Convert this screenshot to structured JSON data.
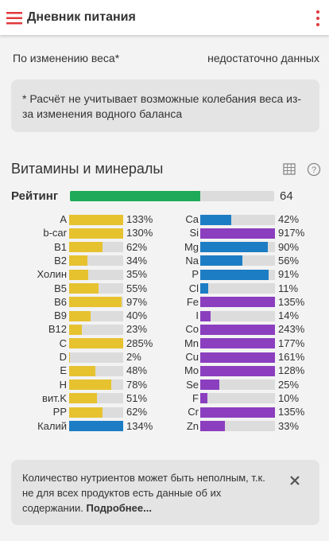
{
  "header": {
    "title": "Дневник питания"
  },
  "weight_row": {
    "label": "По изменению веса*",
    "value": "недостаточно данных"
  },
  "note": "* Расчёт не учитывает возможные колебания веса из-за изменения водного баланса",
  "section": {
    "title": "Витамины и минералы",
    "rating": {
      "label": "Рейтинг",
      "value": 64,
      "color": "#1faa59"
    }
  },
  "vitamins": [
    {
      "name": "A",
      "value": 133,
      "label": "133%",
      "color": "#e6c22f"
    },
    {
      "name": "b-car",
      "value": 130,
      "label": "130%",
      "color": "#e6c22f"
    },
    {
      "name": "B1",
      "value": 62,
      "label": "62%",
      "color": "#e6c22f"
    },
    {
      "name": "B2",
      "value": 34,
      "label": "34%",
      "color": "#e6c22f"
    },
    {
      "name": "Холин",
      "value": 35,
      "label": "35%",
      "color": "#e6c22f"
    },
    {
      "name": "B5",
      "value": 55,
      "label": "55%",
      "color": "#e6c22f"
    },
    {
      "name": "B6",
      "value": 97,
      "label": "97%",
      "color": "#e6c22f"
    },
    {
      "name": "B9",
      "value": 40,
      "label": "40%",
      "color": "#e6c22f"
    },
    {
      "name": "B12",
      "value": 23,
      "label": "23%",
      "color": "#e6c22f"
    },
    {
      "name": "C",
      "value": 285,
      "label": "285%",
      "color": "#e6c22f"
    },
    {
      "name": "D",
      "value": 2,
      "label": "2%",
      "color": "#e6c22f"
    },
    {
      "name": "E",
      "value": 48,
      "label": "48%",
      "color": "#e6c22f"
    },
    {
      "name": "H",
      "value": 78,
      "label": "78%",
      "color": "#e6c22f"
    },
    {
      "name": "вит.K",
      "value": 51,
      "label": "51%",
      "color": "#e6c22f"
    },
    {
      "name": "PP",
      "value": 62,
      "label": "62%",
      "color": "#e6c22f"
    },
    {
      "name": "Калий",
      "value": 134,
      "label": "134%",
      "color": "#1d7dc4"
    }
  ],
  "minerals": [
    {
      "name": "Ca",
      "value": 42,
      "label": "42%",
      "color": "#1d7dc4"
    },
    {
      "name": "Si",
      "value": 917,
      "label": "917%",
      "color": "#8b3fbf"
    },
    {
      "name": "Mg",
      "value": 90,
      "label": "90%",
      "color": "#1d7dc4"
    },
    {
      "name": "Na",
      "value": 56,
      "label": "56%",
      "color": "#1d7dc4"
    },
    {
      "name": "P",
      "value": 91,
      "label": "91%",
      "color": "#1d7dc4"
    },
    {
      "name": "Cl",
      "value": 11,
      "label": "11%",
      "color": "#1d7dc4"
    },
    {
      "name": "Fe",
      "value": 135,
      "label": "135%",
      "color": "#8b3fbf"
    },
    {
      "name": "I",
      "value": 14,
      "label": "14%",
      "color": "#8b3fbf"
    },
    {
      "name": "Co",
      "value": 243,
      "label": "243%",
      "color": "#8b3fbf"
    },
    {
      "name": "Mn",
      "value": 177,
      "label": "177%",
      "color": "#8b3fbf"
    },
    {
      "name": "Cu",
      "value": 161,
      "label": "161%",
      "color": "#8b3fbf"
    },
    {
      "name": "Mo",
      "value": 128,
      "label": "128%",
      "color": "#8b3fbf"
    },
    {
      "name": "Se",
      "value": 25,
      "label": "25%",
      "color": "#8b3fbf"
    },
    {
      "name": "F",
      "value": 10,
      "label": "10%",
      "color": "#8b3fbf"
    },
    {
      "name": "Cr",
      "value": 135,
      "label": "135%",
      "color": "#8b3fbf"
    },
    {
      "name": "Zn",
      "value": 33,
      "label": "33%",
      "color": "#8b3fbf"
    }
  ],
  "footer": {
    "text": "Количество нутриентов может быть неполным, т.к. не для всех продуктов есть данные об их содержании.",
    "link": "Подробнее..."
  }
}
